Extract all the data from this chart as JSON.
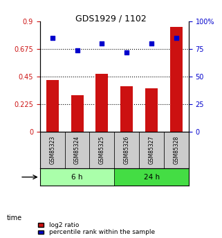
{
  "title": "GDS1929 / 1102",
  "samples": [
    "GSM85323",
    "GSM85324",
    "GSM85325",
    "GSM85326",
    "GSM85327",
    "GSM85328"
  ],
  "log2_ratio": [
    0.42,
    0.3,
    0.47,
    0.37,
    0.355,
    0.855
  ],
  "percentile_rank": [
    85,
    74,
    80,
    72,
    80,
    85
  ],
  "bar_color": "#cc1111",
  "dot_color": "#0000cc",
  "ylim_left": [
    0,
    0.9
  ],
  "ylim_right": [
    0,
    100
  ],
  "yticks_left": [
    0,
    0.225,
    0.45,
    0.675,
    0.9
  ],
  "yticks_right": [
    0,
    25,
    50,
    75,
    100
  ],
  "ytick_labels_left": [
    "0",
    "0.225",
    "0.45",
    "0.675",
    "0.9"
  ],
  "ytick_labels_right": [
    "0",
    "25",
    "50",
    "75",
    "100%"
  ],
  "hlines": [
    0.225,
    0.45,
    0.675
  ],
  "groups": [
    {
      "label": "6 h",
      "indices": [
        0,
        1,
        2
      ],
      "color": "#aaffaa"
    },
    {
      "label": "24 h",
      "indices": [
        3,
        4,
        5
      ],
      "color": "#44dd44"
    }
  ],
  "time_label": "time",
  "legend": [
    {
      "label": "log2 ratio",
      "color": "#cc1111"
    },
    {
      "label": "percentile rank within the sample",
      "color": "#0000cc"
    }
  ],
  "bar_width": 0.5,
  "background_color": "#ffffff",
  "plot_bg": "#ffffff",
  "tick_label_color_left": "#cc1111",
  "tick_label_color_right": "#0000cc"
}
